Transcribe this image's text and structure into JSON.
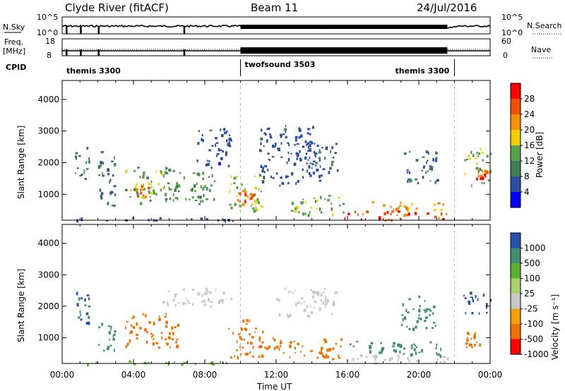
{
  "header": {
    "station": "Clyde River (fitACF)",
    "beam": "Beam 11",
    "date": "24/Jul/2016"
  },
  "strip_nsky": {
    "left_label": "N.Sky",
    "right_label": "N.Search",
    "left_ticks": [
      "10^5",
      "10^0"
    ],
    "right_ticks": [
      "10^5",
      "10^0"
    ]
  },
  "strip_freq": {
    "left_label_1": "Freq.",
    "left_label_2": "[MHz]",
    "right_label": "Nave",
    "left_ticks": [
      "18",
      "8"
    ],
    "right_ticks": [
      "60",
      "0"
    ]
  },
  "cpid": {
    "label": "CPID",
    "segments": [
      {
        "name": "themis 3300",
        "start_h": 0,
        "end_h": 10
      },
      {
        "name": "twofsound 3503",
        "start_h": 10,
        "end_h": 22
      },
      {
        "name": "themis 3300",
        "start_h": 22,
        "end_h": 24
      }
    ]
  },
  "x_axis": {
    "label": "Time UT",
    "ticks": [
      "00:00",
      "04:00",
      "08:00",
      "12:00",
      "16:00",
      "20:00",
      "00:00"
    ],
    "tick_hours": [
      0,
      4,
      8,
      12,
      16,
      20,
      24
    ]
  },
  "power_panel": {
    "ylabel": "Slant Range [km]",
    "yticks": [
      "1000",
      "2000",
      "3000",
      "4000"
    ],
    "ytick_values": [
      1000,
      2000,
      3000,
      4000
    ],
    "colorbar_label": "Power [dB]",
    "colorbar_ticks": [
      "4",
      "8",
      "12",
      "16",
      "20",
      "24",
      "28"
    ],
    "colors": [
      "#0000ff",
      "#2b4fa0",
      "#3f7f55",
      "#57a04c",
      "#f0d000",
      "#f59000",
      "#f05000",
      "#ff0000"
    ]
  },
  "velocity_panel": {
    "ylabel": "Slant Range [km]",
    "yticks": [
      "1000",
      "2000",
      "3000",
      "4000"
    ],
    "ytick_values": [
      1000,
      2000,
      3000,
      4000
    ],
    "colorbar_label": "Velocity [m s⁻¹]",
    "colorbar_ticks": [
      "1000",
      "500",
      "100",
      "25",
      "-25",
      "-100",
      "-500",
      "-1000"
    ],
    "colors": [
      "#2a50b0",
      "#3f8f6e",
      "#5cb030",
      "#a8d070",
      "#c8c8c8",
      "#f5a000",
      "#f07000",
      "#ff0000"
    ]
  },
  "chart_data": [
    {
      "type": "heatmap",
      "title": "Power",
      "xlabel": "Time UT",
      "ylabel": "Slant Range [km]",
      "xlim": [
        0,
        24
      ],
      "ylim": [
        180,
        4600
      ],
      "colorbar": {
        "label": "Power [dB]",
        "range": [
          0,
          30
        ]
      },
      "regions": [
        {
          "t0": 0.2,
          "t1": 9.8,
          "r0": 180,
          "r1": 280,
          "value": 6
        },
        {
          "t0": 0.7,
          "t1": 1.5,
          "r0": 1500,
          "r1": 2500,
          "value": 10
        },
        {
          "t0": 2.0,
          "t1": 3.0,
          "r0": 600,
          "r1": 2400,
          "value": 9
        },
        {
          "t0": 3.5,
          "t1": 6.5,
          "r0": 700,
          "r1": 1900,
          "value": 14
        },
        {
          "t0": 4.0,
          "t1": 5.0,
          "r0": 900,
          "r1": 1400,
          "value": 22
        },
        {
          "t0": 6.2,
          "t1": 8.5,
          "r0": 700,
          "r1": 1800,
          "value": 12
        },
        {
          "t0": 7.5,
          "t1": 9.5,
          "r0": 1800,
          "r1": 3100,
          "value": 6
        },
        {
          "t0": 9.3,
          "t1": 11.3,
          "r0": 500,
          "r1": 1600,
          "value": 16
        },
        {
          "t0": 9.8,
          "t1": 10.8,
          "r0": 700,
          "r1": 1200,
          "value": 24
        },
        {
          "t0": 11.0,
          "t1": 14.5,
          "r0": 1300,
          "r1": 3200,
          "value": 6
        },
        {
          "t0": 12.7,
          "t1": 15.8,
          "r0": 350,
          "r1": 1000,
          "value": 14
        },
        {
          "t0": 13.5,
          "t1": 15.5,
          "r0": 1600,
          "r1": 2700,
          "value": 7
        },
        {
          "t0": 15.8,
          "t1": 21.6,
          "r0": 200,
          "r1": 500,
          "value": 28
        },
        {
          "t0": 17.0,
          "t1": 21.5,
          "r0": 500,
          "r1": 800,
          "value": 22
        },
        {
          "t0": 19.0,
          "t1": 21.0,
          "r0": 1300,
          "r1": 2400,
          "value": 8
        },
        {
          "t0": 22.5,
          "t1": 24.0,
          "r0": 1300,
          "r1": 2500,
          "value": 14
        },
        {
          "t0": 23.2,
          "t1": 23.9,
          "r0": 1500,
          "r1": 1800,
          "value": 26
        }
      ]
    },
    {
      "type": "heatmap",
      "title": "Velocity",
      "xlabel": "Time UT",
      "ylabel": "Slant Range [km]",
      "xlim": [
        0,
        24
      ],
      "ylim": [
        180,
        4600
      ],
      "colorbar": {
        "label": "Velocity [m s⁻¹]",
        "range": [
          -1000,
          1000
        ]
      },
      "regions": [
        {
          "t0": 0.2,
          "t1": 9.8,
          "r0": 180,
          "r1": 280,
          "value": 60
        },
        {
          "t0": 0.7,
          "t1": 1.5,
          "r0": 1500,
          "r1": 2500,
          "value": 500
        },
        {
          "t0": 2.0,
          "t1": 3.0,
          "r0": 600,
          "r1": 1500,
          "value": 300
        },
        {
          "t0": 3.5,
          "t1": 6.5,
          "r0": 700,
          "r1": 1800,
          "value": -300
        },
        {
          "t0": 5.5,
          "t1": 9.5,
          "r0": 2000,
          "r1": 2600,
          "value": 0
        },
        {
          "t0": 9.3,
          "t1": 11.3,
          "r0": 400,
          "r1": 1600,
          "value": -400
        },
        {
          "t0": 11.0,
          "t1": 12.5,
          "r0": 500,
          "r1": 1100,
          "value": -300
        },
        {
          "t0": 12.0,
          "t1": 15.5,
          "r0": 1700,
          "r1": 2600,
          "value": 0
        },
        {
          "t0": 12.7,
          "t1": 15.8,
          "r0": 350,
          "r1": 1000,
          "value": -300
        },
        {
          "t0": 15.8,
          "t1": 21.6,
          "r0": 200,
          "r1": 500,
          "value": 0
        },
        {
          "t0": 16.0,
          "t1": 21.5,
          "r0": 450,
          "r1": 900,
          "value": 150
        },
        {
          "t0": 19.0,
          "t1": 21.0,
          "r0": 1300,
          "r1": 2400,
          "value": 200
        },
        {
          "t0": 22.5,
          "t1": 24.0,
          "r0": 1800,
          "r1": 2500,
          "value": 800
        },
        {
          "t0": 22.6,
          "t1": 23.4,
          "r0": 700,
          "r1": 1200,
          "value": -300
        }
      ]
    }
  ]
}
